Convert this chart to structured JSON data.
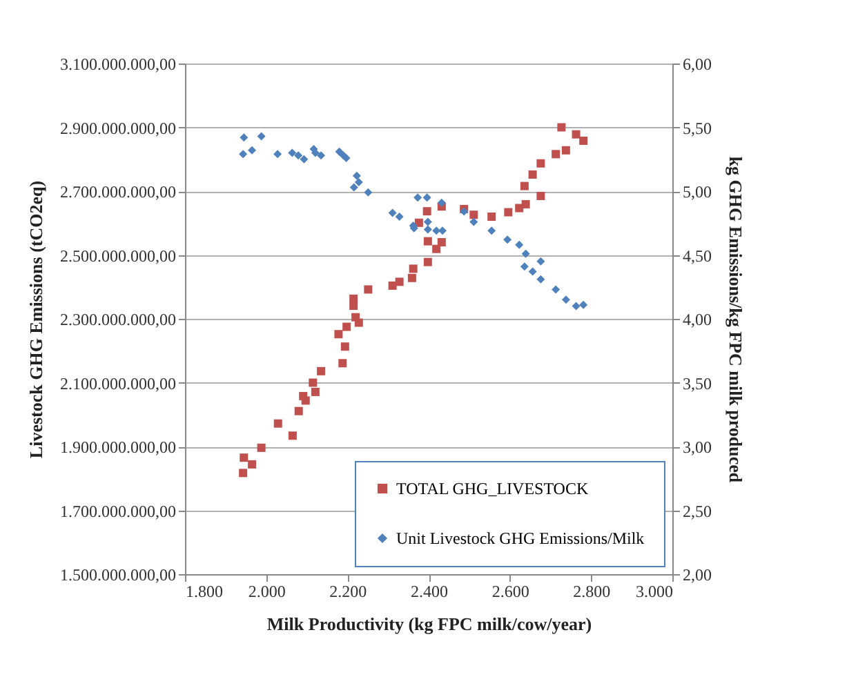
{
  "chart_data": {
    "type": "scatter",
    "xlabel": "Milk Productivity (kg FPC milk/cow/year)",
    "ylabel": "Livestock GHG Emissions (tCO2eq)",
    "y2label": "kg GHG Emissions/kg FPC milk produced",
    "xlim": [
      1800,
      3000
    ],
    "xticks": [
      {
        "value": 1800,
        "label": "1.800"
      },
      {
        "value": 2000,
        "label": "2.000"
      },
      {
        "value": 2200,
        "label": "2.200"
      },
      {
        "value": 2400,
        "label": "2.400"
      },
      {
        "value": 2600,
        "label": "2.600"
      },
      {
        "value": 2800,
        "label": "2.800"
      },
      {
        "value": 3000,
        "label": "3.000"
      }
    ],
    "ylim": [
      1500000000,
      3100000000
    ],
    "yticks": [
      {
        "value": 1500000000,
        "label": "1.500.000.000,00"
      },
      {
        "value": 1700000000,
        "label": "1.700.000.000,00"
      },
      {
        "value": 1900000000,
        "label": "1.900.000.000,00"
      },
      {
        "value": 2100000000,
        "label": "2.100.000.000,00"
      },
      {
        "value": 2300000000,
        "label": "2.300.000.000,00"
      },
      {
        "value": 2500000000,
        "label": "2.500.000.000,00"
      },
      {
        "value": 2700000000,
        "label": "2.700.000.000,00"
      },
      {
        "value": 2900000000,
        "label": "2.900.000.000,00"
      },
      {
        "value": 3100000000,
        "label": "3.100.000.000,00"
      }
    ],
    "y2lim": [
      2,
      6
    ],
    "y2ticks": [
      {
        "value": 2,
        "label": "2,00"
      },
      {
        "value": 2.5,
        "label": "2,50"
      },
      {
        "value": 3,
        "label": "3,00"
      },
      {
        "value": 3.5,
        "label": "3,50"
      },
      {
        "value": 4,
        "label": "4,00"
      },
      {
        "value": 4.5,
        "label": "4,50"
      },
      {
        "value": 5,
        "label": "5,00"
      },
      {
        "value": 5.5,
        "label": "5,50"
      },
      {
        "value": 6,
        "label": "6,00"
      }
    ],
    "grid": "y",
    "legend": "bottom right",
    "series": [
      {
        "name": "TOTAL GHG_LIVESTOCK",
        "color": "#c0504d",
        "marker": "square",
        "x": [
          1943,
          1945,
          1965,
          1988,
          2029,
          2065,
          2080,
          2091,
          2097,
          2115,
          2121,
          2135,
          2178,
          2188,
          2194,
          2198,
          2215,
          2215,
          2220,
          2228,
          2251,
          2311,
          2328,
          2359,
          2362,
          2376,
          2396,
          2398,
          2398,
          2419,
          2432,
          2432,
          2487,
          2511,
          2555,
          2596,
          2623,
          2636,
          2639,
          2656,
          2676,
          2676,
          2713,
          2727,
          2738,
          2763,
          2781
        ],
        "values": [
          1817000000,
          1865000000,
          1844000000,
          1896000000,
          1972000000,
          1934000000,
          2011000000,
          2058000000,
          2044000000,
          2100000000,
          2071000000,
          2136000000,
          2252000000,
          2161000000,
          2213000000,
          2275000000,
          2341000000,
          2363000000,
          2305000000,
          2288000000,
          2392000000,
          2404000000,
          2416000000,
          2428000000,
          2457000000,
          2601000000,
          2637000000,
          2478000000,
          2543000000,
          2519000000,
          2540000000,
          2652000000,
          2644000000,
          2626000000,
          2620000000,
          2634000000,
          2647000000,
          2716000000,
          2659000000,
          2752000000,
          2685000000,
          2787000000,
          2816000000,
          2900000000,
          2828000000,
          2878000000,
          2858000000
        ]
      },
      {
        "name": "Unit Livestock GHG Emissions/Milk",
        "color": "#4f81bd",
        "marker": "diamond",
        "axis": "y2",
        "x": [
          1943,
          1945,
          1965,
          1988,
          2028,
          2064,
          2079,
          2093,
          2117,
          2121,
          2135,
          2180,
          2190,
          2197,
          2216,
          2223,
          2228,
          2251,
          2311,
          2328,
          2362,
          2364,
          2373,
          2396,
          2398,
          2398,
          2419,
          2432,
          2434,
          2487,
          2511,
          2555,
          2594,
          2623,
          2636,
          2639,
          2656,
          2676,
          2676,
          2713,
          2738,
          2763,
          2781
        ],
        "values": [
          5.29,
          5.42,
          5.32,
          5.43,
          5.29,
          5.3,
          5.28,
          5.25,
          5.33,
          5.3,
          5.28,
          5.31,
          5.28,
          5.26,
          5.03,
          5.12,
          5.07,
          4.99,
          4.83,
          4.8,
          4.73,
          4.71,
          4.95,
          4.95,
          4.76,
          4.7,
          4.69,
          4.91,
          4.69,
          4.84,
          4.76,
          4.69,
          4.62,
          4.58,
          4.41,
          4.51,
          4.37,
          4.45,
          4.31,
          4.23,
          4.15,
          4.1,
          4.11
        ]
      }
    ]
  }
}
